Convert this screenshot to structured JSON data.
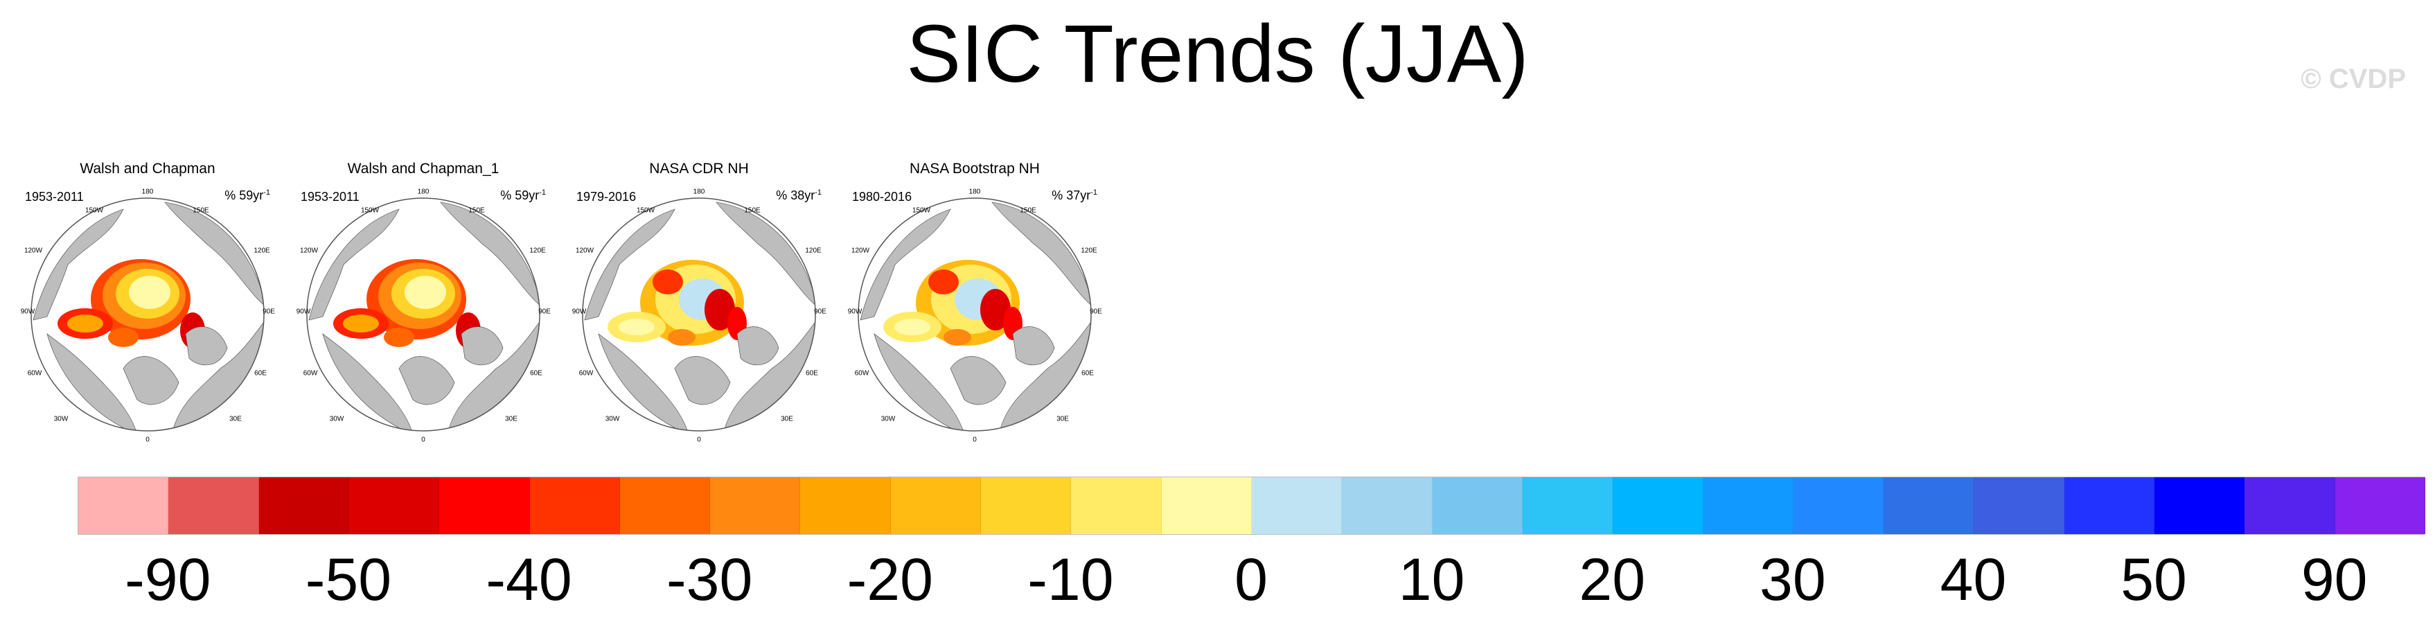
{
  "title": "SIC Trends (JJA)",
  "credit": "© CVDP",
  "panels": [
    {
      "title": "Walsh and Chapman",
      "years": "1953-2011",
      "rate": "% 59yr",
      "rate_exp": "-1",
      "style": "red"
    },
    {
      "title": "Walsh and Chapman_1",
      "years": "1953-2011",
      "rate": "% 59yr",
      "rate_exp": "-1",
      "style": "red"
    },
    {
      "title": "NASA CDR NH",
      "years": "1979-2016",
      "rate": "% 38yr",
      "rate_exp": "-1",
      "style": "mixed"
    },
    {
      "title": "NASA Bootstrap NH",
      "years": "1980-2016",
      "rate": "% 37yr",
      "rate_exp": "-1",
      "style": "mixed"
    }
  ],
  "longitudes": [
    "180",
    "150W",
    "150E",
    "120W",
    "120E",
    "90W",
    "90E",
    "60W",
    "60E",
    "30W",
    "30E",
    "0"
  ],
  "chart_data": {
    "type": "heatmap",
    "title": "SIC Trends (JJA)",
    "colorbar": {
      "colors": [
        "#FFB0B0",
        "#E55555",
        "#C80000",
        "#DD0000",
        "#FF0000",
        "#FF3300",
        "#FF6600",
        "#FF8811",
        "#FFA500",
        "#FFBB11",
        "#FFD42A",
        "#FFEB66",
        "#FFFAA8",
        "#BFE3F3",
        "#A0D4EF",
        "#78C6F0",
        "#2CC3F7",
        "#00B4FF",
        "#1199FF",
        "#2288FF",
        "#3070E6",
        "#3D5EE0",
        "#2233FF",
        "#0000FF",
        "#5522EE",
        "#8822EE"
      ],
      "tick_labels": [
        "-90",
        "-50",
        "-40",
        "-30",
        "-20",
        "-10",
        "0",
        "10",
        "20",
        "30",
        "40",
        "50",
        "90"
      ],
      "tick_boundaries": [
        1,
        3,
        5,
        7,
        9,
        11,
        13,
        15,
        17,
        19,
        21,
        23,
        25
      ]
    }
  }
}
